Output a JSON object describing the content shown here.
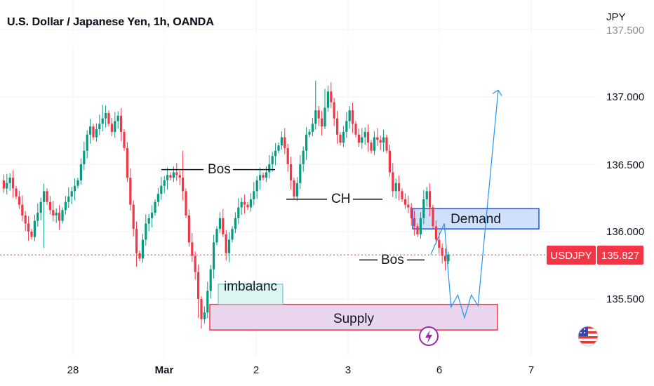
{
  "header": {
    "title": "U.S. Dollar / Japanese Yen, 1h, OANDA"
  },
  "price_axis": {
    "currency": "JPY",
    "ticks": [
      "137.000",
      "136.500",
      "136.000",
      "135.500"
    ],
    "partial_top_tick": "137.500"
  },
  "time_axis": {
    "ticks": [
      "28",
      "Mar",
      "2",
      "3",
      "6",
      "7"
    ]
  },
  "price_tag": {
    "symbol": "USDJPY",
    "value": "135.827",
    "color": "#f23645"
  },
  "colors": {
    "up": "#089981",
    "down": "#f23645",
    "drawing": "#2196f3",
    "demand_fill": "#cfe0fb",
    "demand_border": "#1e53e5",
    "supply_fill": "#ead5ee",
    "supply_border": "#f23645",
    "imbalance_fill": "#dcf5f3",
    "imbalance_border": "#4fc4c0"
  },
  "annotations": {
    "bos_left": "Bos",
    "ch": "CH",
    "bos_right": "Bos",
    "demand": "Demand",
    "supply": "Supply",
    "imbalance": "imbalanc"
  },
  "icons": [
    "lightning-icon",
    "us-flag-icon"
  ],
  "chart_data": {
    "type": "candlestick",
    "title": "U.S. Dollar / Japanese Yen, 1h, OANDA",
    "ylabel": "JPY",
    "ylim": [
      135.15,
      137.55
    ],
    "last_price": 135.827,
    "zones": {
      "demand": [
        136.02,
        136.17
      ],
      "supply": [
        135.27,
        135.46
      ],
      "imbalance": [
        135.46,
        135.61
      ]
    },
    "levels": {
      "bos_left": 136.46,
      "ch": 136.24,
      "bos_right": 135.79
    },
    "projection": [
      [
        135.83,
        0
      ],
      [
        136.06,
        2
      ],
      [
        135.44,
        3
      ],
      [
        135.53,
        4
      ],
      [
        135.36,
        5
      ],
      [
        135.53,
        6
      ],
      [
        135.45,
        7
      ],
      [
        137.05,
        10
      ]
    ],
    "path": [
      136.38,
      136.32,
      136.36,
      136.4,
      136.32,
      136.26,
      136.2,
      136.12,
      136.06,
      136.0,
      135.96,
      136.08,
      136.14,
      136.22,
      136.3,
      136.22,
      136.16,
      136.12,
      136.14,
      136.08,
      136.16,
      136.22,
      136.26,
      136.3,
      136.34,
      136.38,
      136.5,
      136.6,
      136.72,
      136.78,
      136.7,
      136.76,
      136.8,
      136.84,
      136.88,
      136.8,
      136.74,
      136.82,
      136.86,
      136.74,
      136.62,
      136.4,
      136.2,
      136.02,
      135.84,
      135.8,
      135.94,
      136.06,
      136.1,
      136.14,
      136.22,
      136.28,
      136.34,
      136.38,
      136.42,
      136.4,
      136.44,
      136.42,
      136.4,
      136.3,
      136.12,
      135.92,
      135.82,
      135.7,
      135.5,
      135.35,
      135.4,
      135.56,
      135.72,
      135.92,
      136.02,
      136.1,
      135.98,
      135.84,
      135.94,
      136.02,
      136.1,
      136.18,
      136.22,
      136.2,
      136.18,
      136.24,
      136.3,
      136.38,
      136.42,
      136.4,
      136.44,
      136.5,
      136.56,
      136.6,
      136.64,
      136.7,
      136.62,
      136.5,
      136.38,
      136.26,
      136.36,
      136.5,
      136.6,
      136.72,
      136.74,
      136.8,
      136.9,
      136.84,
      136.78,
      136.92,
      137.04,
      136.96,
      136.84,
      136.72,
      136.66,
      136.74,
      136.82,
      136.9,
      136.8,
      136.72,
      136.66,
      136.7,
      136.74,
      136.66,
      136.6,
      136.7,
      136.68,
      136.66,
      136.7,
      136.6,
      136.44,
      136.3,
      136.36,
      136.3,
      136.24,
      136.2,
      136.18,
      136.1,
      136.04,
      135.98,
      136.1,
      136.24,
      136.3,
      136.18,
      136.04,
      135.94,
      135.88,
      135.82,
      135.78,
      135.83
    ]
  }
}
